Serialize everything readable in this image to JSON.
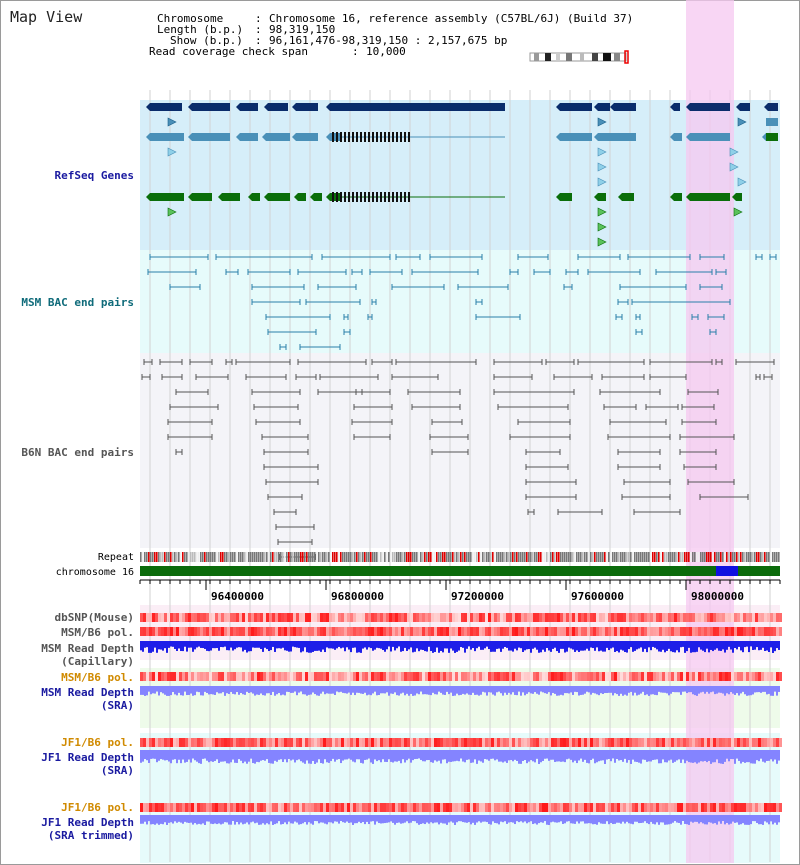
{
  "header": {
    "title": "Map View",
    "chromosome_label": "Chromosome",
    "chromosome_value": "Chromosome 16, reference assembly (C57BL/6J) (Build 37)",
    "length_label": "Length (b.p.)",
    "length_value": "98,319,150",
    "show_label": "Show (b.p.)",
    "show_value": "96,161,476-98,319,150 : 2,157,675 bp",
    "coverage_label": "Read coverage check span",
    "coverage_value": "10,000"
  },
  "tracks": {
    "refseq": "RefSeq Genes",
    "msm_bac": "MSM BAC end pairs",
    "b6n_bac": "B6N BAC end pairs",
    "repeat": "Repeat",
    "chromosome": "chromosome 16",
    "dbsnp": "dbSNP(Mouse)",
    "msm_b6_pol": "MSM/B6 pol.",
    "msm_depth_cap_1": "MSM Read Depth",
    "msm_depth_cap_2": "(Capillary)",
    "msm_b6_pol_sra": "MSM/B6 pol.",
    "msm_depth_sra_1": "MSM Read Depth",
    "msm_depth_sra_2": "(SRA)",
    "jf1_pol_1": "JF1/B6 pol.",
    "jf1_depth_1": "JF1 Read Depth",
    "jf1_depth_1b": "(SRA)",
    "jf1_pol_2": "JF1/B6 pol.",
    "jf1_depth_2": "JF1 Read Depth",
    "jf1_depth_2b": "(SRA trimmed)"
  },
  "ruler": {
    "ticks": [
      "96400000",
      "96800000",
      "97200000",
      "97600000",
      "98000000"
    ]
  },
  "colors": {
    "refseq_dark": "#0a2c6b",
    "refseq_mid": "#4a90b8",
    "refseq_green": "#0a6e0a",
    "msm_bac": "#2a7fa8",
    "b6n_bac": "#555555",
    "highlight": "#f5c8f0",
    "label_blue": "#1a1aa0",
    "label_orange": "#d08a00",
    "chrom_green": "#0b6b0b",
    "chrom_blue": "#1010e0",
    "depth_cap": "#1e1ee8",
    "depth_sra": "#8484ff"
  }
}
